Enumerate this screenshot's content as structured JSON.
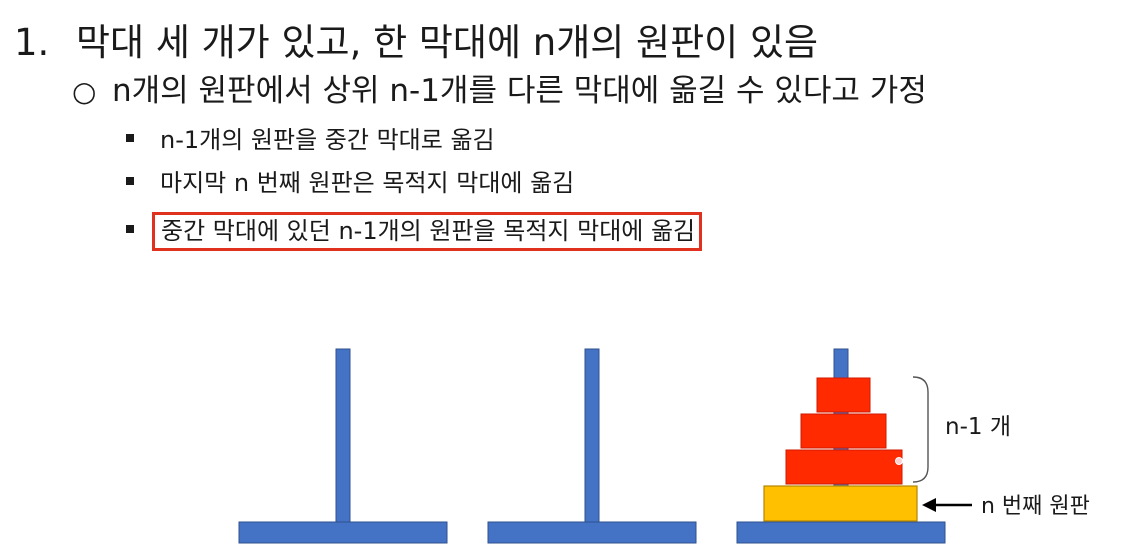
{
  "steps": {
    "main": {
      "number": "1.",
      "text": "막대 세 개가 있고, 한 막대에 n개의 원판이 있음"
    },
    "sub": {
      "bullet": "○",
      "text": "n개의 원판에서 상위 n-1개를 다른 막대에 옮길 수 있다고 가정"
    },
    "details": [
      "n-1개의 원판을 중간 막대로 옮김",
      "마지막 n 번째 원판은 목적지 막대에 옮김",
      "중간 막대에 있던 n-1개의 원판을 목적지 막대에 옮김"
    ]
  },
  "diagram": {
    "labels": {
      "top_group": "n-1 개",
      "bottom_disk": "n 번째 원판"
    },
    "colors": {
      "peg": "#4472c4",
      "peg_border": "#2f528f",
      "disk_red": "#ff2a00",
      "disk_red_border": "#d01800",
      "disk_gold": "#ffc000",
      "disk_gold_border": "#b38600",
      "highlight_border": "#e0301e"
    }
  }
}
